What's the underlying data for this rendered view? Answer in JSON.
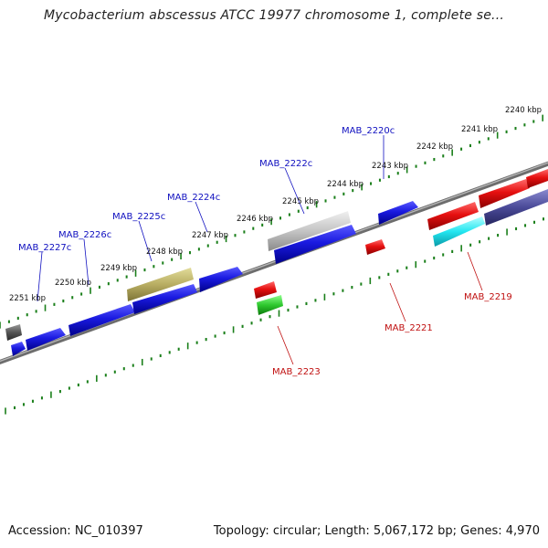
{
  "title": "Mycobacterium abscessus ATCC 19977 chromosome 1, complete se...",
  "footer": {
    "accession": "Accession: NC_010397",
    "summary": "Topology: circular; Length: 5,067,172 bp; Genes: 4,970"
  },
  "colors": {
    "forward_gene": "#1f1fd8",
    "reverse_gene": "#e01010",
    "backbone": "#7f7f7f",
    "tick": "#1a7f1a",
    "forward_label": "#1010c0",
    "reverse_label": "#c01010"
  },
  "kbp_labels": [
    "2240 kbp",
    "2241 kbp",
    "2242 kbp",
    "2243 kbp",
    "2244 kbp",
    "2245 kbp",
    "2246 kbp",
    "2247 kbp",
    "2248 kbp",
    "2249 kbp",
    "2250 kbp",
    "2251 kbp"
  ],
  "forward_gene_labels": [
    "MAB_2220c",
    "MAB_2222c",
    "MAB_2224c",
    "MAB_2225c",
    "MAB_2226c",
    "MAB_2227c"
  ],
  "reverse_gene_labels": [
    "MAB_2219",
    "MAB_2221",
    "MAB_2223"
  ]
}
